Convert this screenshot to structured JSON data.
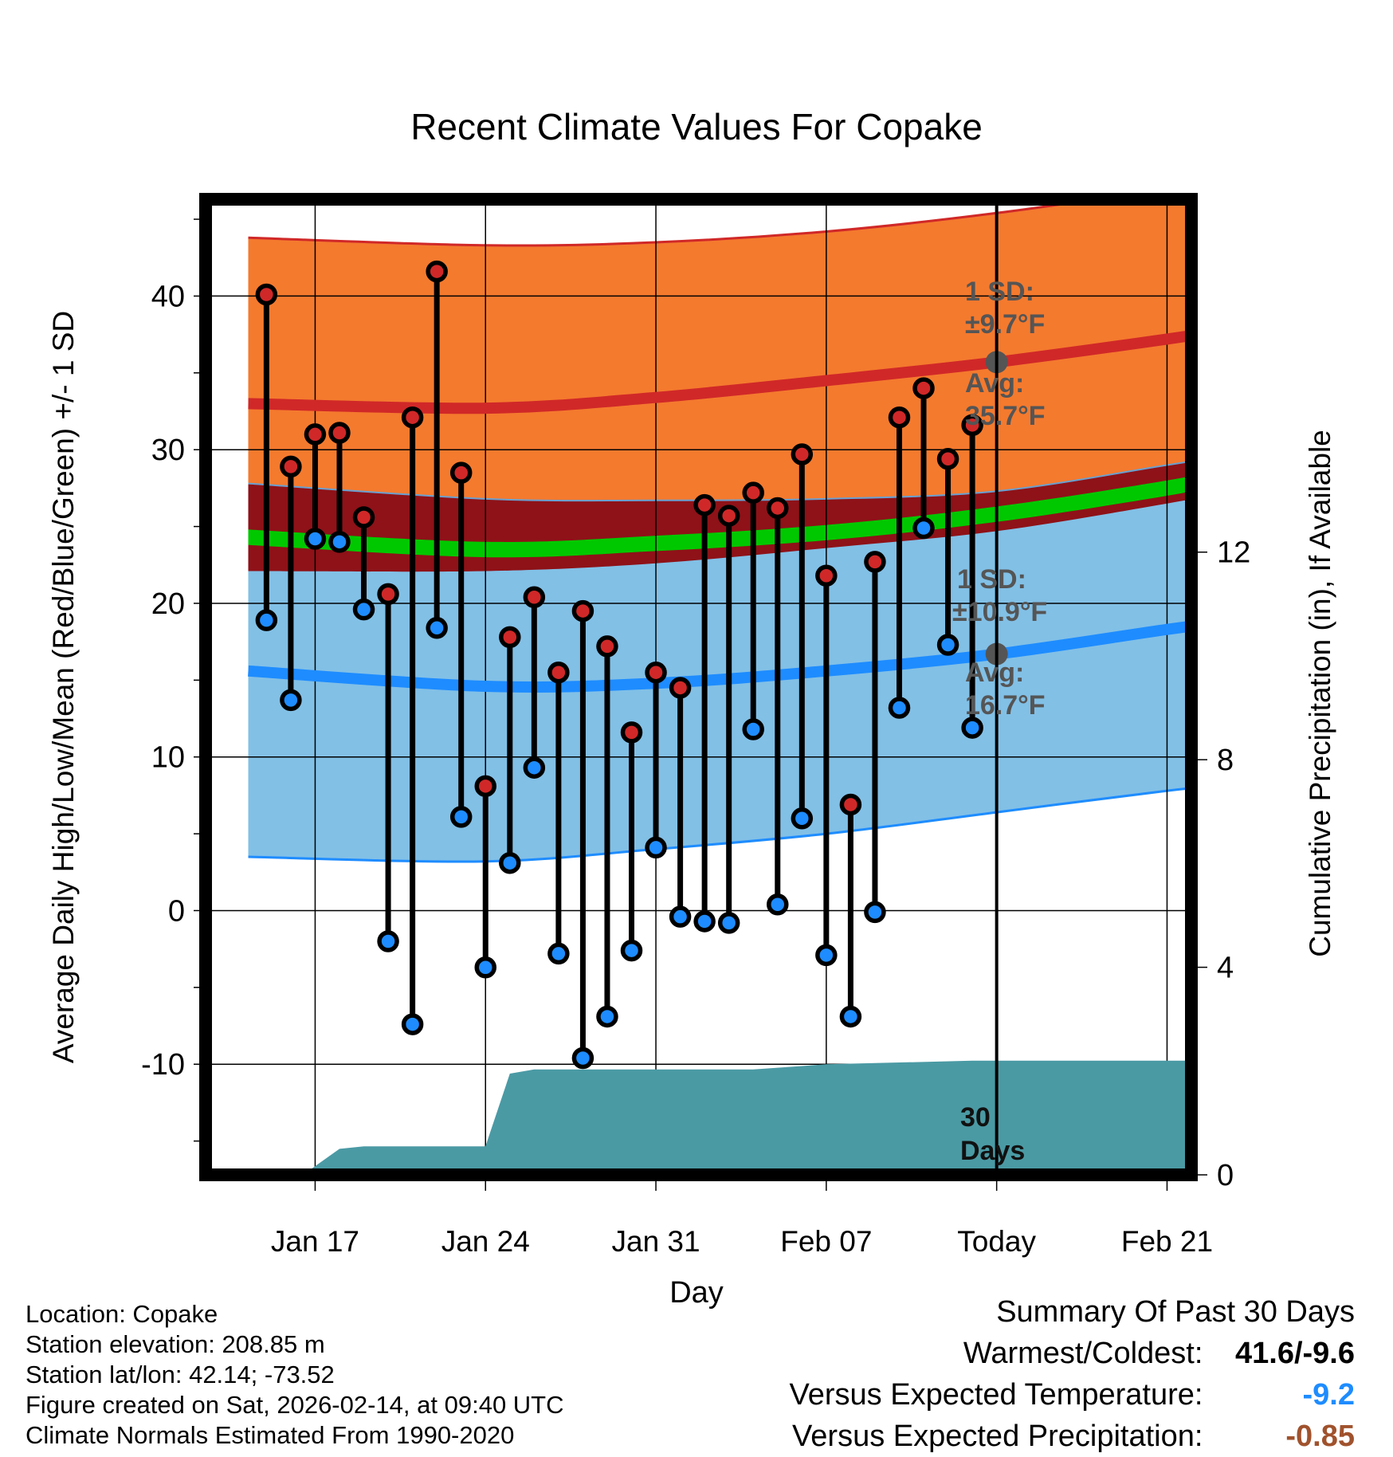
{
  "chart_data": {
    "type": "line",
    "title": "Recent Climate Values For Copake",
    "xlabel": "Day",
    "ylabel": "Average Daily High/Low/Mean (Red/Blue/Green) +/- 1 SD",
    "y2label": "Cumulative Precipitation (in), If Available",
    "x_range_days": [
      -4.5,
      36
    ],
    "y_range": [
      -17.2,
      46.3
    ],
    "y2_range": [
      0,
      18.8
    ],
    "y_ticks": [
      -10,
      0,
      10,
      20,
      30,
      40
    ],
    "y2_ticks": [
      0,
      4,
      8,
      12
    ],
    "x_ticks": [
      {
        "day": 0,
        "label": "Jan 17"
      },
      {
        "day": 7,
        "label": "Jan 24"
      },
      {
        "day": 14,
        "label": "Jan 31"
      },
      {
        "day": 21,
        "label": "Feb 07"
      },
      {
        "day": 28,
        "label": "Today"
      },
      {
        "day": 35,
        "label": "Feb 21"
      }
    ],
    "today_day": 28,
    "observed": {
      "days": [
        -2,
        -1,
        0,
        1,
        2,
        3,
        4,
        5,
        6,
        7,
        8,
        9,
        10,
        11,
        12,
        13,
        14,
        15,
        16,
        17,
        18,
        19,
        20,
        21,
        22,
        23,
        24,
        25,
        26,
        27
      ],
      "highs": [
        40.1,
        28.9,
        31.0,
        31.1,
        25.6,
        20.6,
        32.1,
        41.6,
        28.5,
        8.1,
        17.8,
        20.4,
        15.5,
        19.5,
        17.2,
        11.6,
        15.5,
        14.5,
        26.4,
        25.7,
        27.2,
        26.2,
        29.7,
        21.8,
        6.9,
        22.7,
        32.1,
        34.0,
        29.4,
        31.6
      ],
      "lows": [
        18.9,
        13.7,
        24.2,
        24.0,
        19.6,
        -2.0,
        -7.4,
        18.4,
        6.1,
        -3.7,
        3.1,
        9.3,
        -2.8,
        -9.6,
        -6.9,
        -2.6,
        4.1,
        -0.4,
        -0.7,
        -0.8,
        11.8,
        0.4,
        6.0,
        -2.9,
        -6.9,
        -0.1,
        13.2,
        24.9,
        17.3,
        11.9
      ]
    },
    "normals": {
      "days": [
        -2.75,
        7,
        14,
        21,
        28,
        35,
        38.25
      ],
      "high_avg": [
        33.0,
        32.7,
        33.4,
        34.5,
        35.7,
        37.2,
        38.0
      ],
      "high_sd": 9.7,
      "low_avg": [
        15.6,
        14.6,
        14.8,
        15.6,
        16.7,
        18.3,
        19.0
      ],
      "low_sd": 10.9,
      "record_high_upper": [
        43.8,
        43.3,
        43.5,
        44.2,
        45.4,
        47.0,
        47.9
      ],
      "lower_low_bound": [
        3.5,
        3.2,
        4.0,
        5.0,
        6.4,
        7.8,
        8.3
      ],
      "mean_band_upper": [
        24.8,
        24.0,
        24.4,
        25.1,
        26.3,
        28.0,
        29.0
      ],
      "mean_band_lower": [
        23.8,
        23.0,
        23.4,
        24.1,
        25.3,
        27.0,
        28.0
      ],
      "dark_band_upper": [
        27.8,
        26.8,
        26.7,
        26.8,
        27.3,
        29.0,
        29.8
      ],
      "dark_band_lower": [
        22.1,
        22.1,
        22.6,
        23.6,
        24.7,
        26.5,
        27.5
      ]
    },
    "precipitation": {
      "days": [
        -0.5,
        1,
        2,
        7,
        8,
        9,
        18,
        21,
        27,
        36
      ],
      "cumulative_in": [
        0.0,
        0.5,
        0.55,
        0.55,
        1.95,
        2.03,
        2.03,
        2.13,
        2.2,
        2.2
      ]
    },
    "annotations": {
      "high_sd_title": "1 SD:",
      "high_sd_value": "±9.7°F",
      "high_avg_title": "Avg:",
      "high_avg_value": "35.7°F",
      "low_sd_title": "1 SD:",
      "low_sd_value": "±10.9°F",
      "low_avg_title": "Avg:",
      "low_avg_value": "16.7°F",
      "window_line1": "30",
      "window_line2": "Days"
    },
    "colors": {
      "orange_band": "#f47a2e",
      "dark_red_band": "#8e1218",
      "green_band": "#00c800",
      "light_blue_band": "#82c0e6",
      "high_line": "#d02828",
      "low_line": "#1e8cff",
      "precip_fill": "#4a9aa4",
      "high_dot": "#d02828",
      "low_dot": "#1e8cff",
      "avg_dot": "#555555",
      "annotation_text": "#555555"
    }
  },
  "footer": {
    "location": "Location: Copake",
    "elevation": "Station elevation: 208.85 m",
    "latlon": "Station lat/lon: 42.14; -73.52",
    "created": "Figure created on Sat, 2026-02-14, at 09:40 UTC",
    "normals": "Climate Normals Estimated From 1990-2020"
  },
  "summary": {
    "title": "Summary Of Past 30 Days",
    "warm_cold_label": "Warmest/Coldest:",
    "warm_cold_value": "41.6/-9.6",
    "temp_label": "Versus Expected Temperature:",
    "temp_value": "-9.2",
    "temp_color": "#1e8cff",
    "precip_label": "Versus Expected Precipitation:",
    "precip_value": "-0.85",
    "precip_color": "#a0522d"
  }
}
